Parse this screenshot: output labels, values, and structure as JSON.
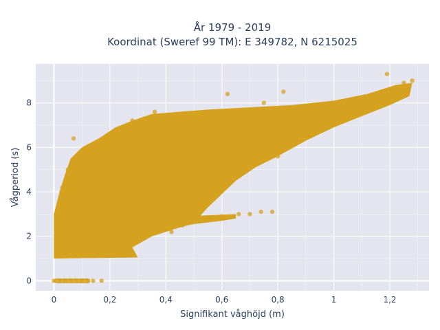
{
  "chart_data": {
    "type": "scatter",
    "title_line1": "År 1979 - 2019",
    "title_line2": "Koordinat (Sweref 99 TM): E 349782, N 6215025",
    "xlabel": "Signifikant våghöjd (m)",
    "ylabel": "Vågperiod (s)",
    "xlim": [
      -0.065,
      1.34
    ],
    "ylim": [
      -0.45,
      9.75
    ],
    "xticks": [
      0,
      0.2,
      0.4,
      0.6,
      0.8,
      1,
      1.2
    ],
    "xtick_labels": [
      "0",
      "0,2",
      "0,4",
      "0,6",
      "0,8",
      "1",
      "1,2"
    ],
    "yticks": [
      0,
      2,
      4,
      6,
      8
    ],
    "ytick_labels": [
      "0",
      "2",
      "4",
      "6",
      "8"
    ],
    "grid": true,
    "marker_color": "#D4A21F",
    "plot_background": "#E5E5F0",
    "series": [
      {
        "values": [
          [
            0,
            0
          ],
          [
            0.02,
            0
          ],
          [
            0.04,
            0
          ],
          [
            0.06,
            0
          ],
          [
            0.08,
            0
          ],
          [
            0.1,
            0
          ],
          [
            0.12,
            0
          ],
          [
            0.14,
            0
          ],
          [
            0.17,
            0
          ],
          [
            0.02,
            1.1
          ],
          [
            0.05,
            1.2
          ],
          [
            0.08,
            1.3
          ],
          [
            0.1,
            1.5
          ],
          [
            0.03,
            1.8
          ],
          [
            0.06,
            2.2
          ],
          [
            0.02,
            2.8
          ],
          [
            0.05,
            3.4
          ],
          [
            0.03,
            4.2
          ],
          [
            0.05,
            5
          ],
          [
            0.07,
            6.4
          ],
          [
            0.12,
            1.4
          ],
          [
            0.15,
            1.8
          ],
          [
            0.18,
            2.4
          ],
          [
            0.16,
            3.2
          ],
          [
            0.2,
            3.8
          ],
          [
            0.18,
            4.6
          ],
          [
            0.22,
            5.3
          ],
          [
            0.2,
            6.1
          ],
          [
            0.25,
            6.8
          ],
          [
            0.28,
            7.2
          ],
          [
            0.3,
            1.8
          ],
          [
            0.28,
            2.6
          ],
          [
            0.33,
            3.4
          ],
          [
            0.35,
            4.3
          ],
          [
            0.32,
            5.2
          ],
          [
            0.38,
            6
          ],
          [
            0.4,
            6.9
          ],
          [
            0.36,
            7.6
          ],
          [
            0.42,
            2.2
          ],
          [
            0.46,
            2.5
          ],
          [
            0.5,
            2.7
          ],
          [
            0.55,
            2.8
          ],
          [
            0.6,
            2.9
          ],
          [
            0.66,
            3
          ],
          [
            0.7,
            3
          ],
          [
            0.74,
            3.1
          ],
          [
            0.78,
            3.1
          ],
          [
            0.45,
            4.4
          ],
          [
            0.5,
            5.2
          ],
          [
            0.55,
            5.9
          ],
          [
            0.6,
            6.3
          ],
          [
            0.65,
            6.8
          ],
          [
            0.7,
            7.2
          ],
          [
            0.62,
            8.4
          ],
          [
            0.75,
            8
          ],
          [
            0.8,
            5.6
          ],
          [
            0.85,
            6.2
          ],
          [
            0.9,
            6.7
          ],
          [
            0.95,
            7.1
          ],
          [
            1,
            7.4
          ],
          [
            0.82,
            8.5
          ],
          [
            1.05,
            7.6
          ],
          [
            1.1,
            7.8
          ],
          [
            1.15,
            8.1
          ],
          [
            1.18,
            8.3
          ],
          [
            1.2,
            8.6
          ],
          [
            1.22,
            8.7
          ],
          [
            1.25,
            8.9
          ],
          [
            1.28,
            9
          ],
          [
            1.19,
            9.3
          ]
        ]
      }
    ]
  }
}
